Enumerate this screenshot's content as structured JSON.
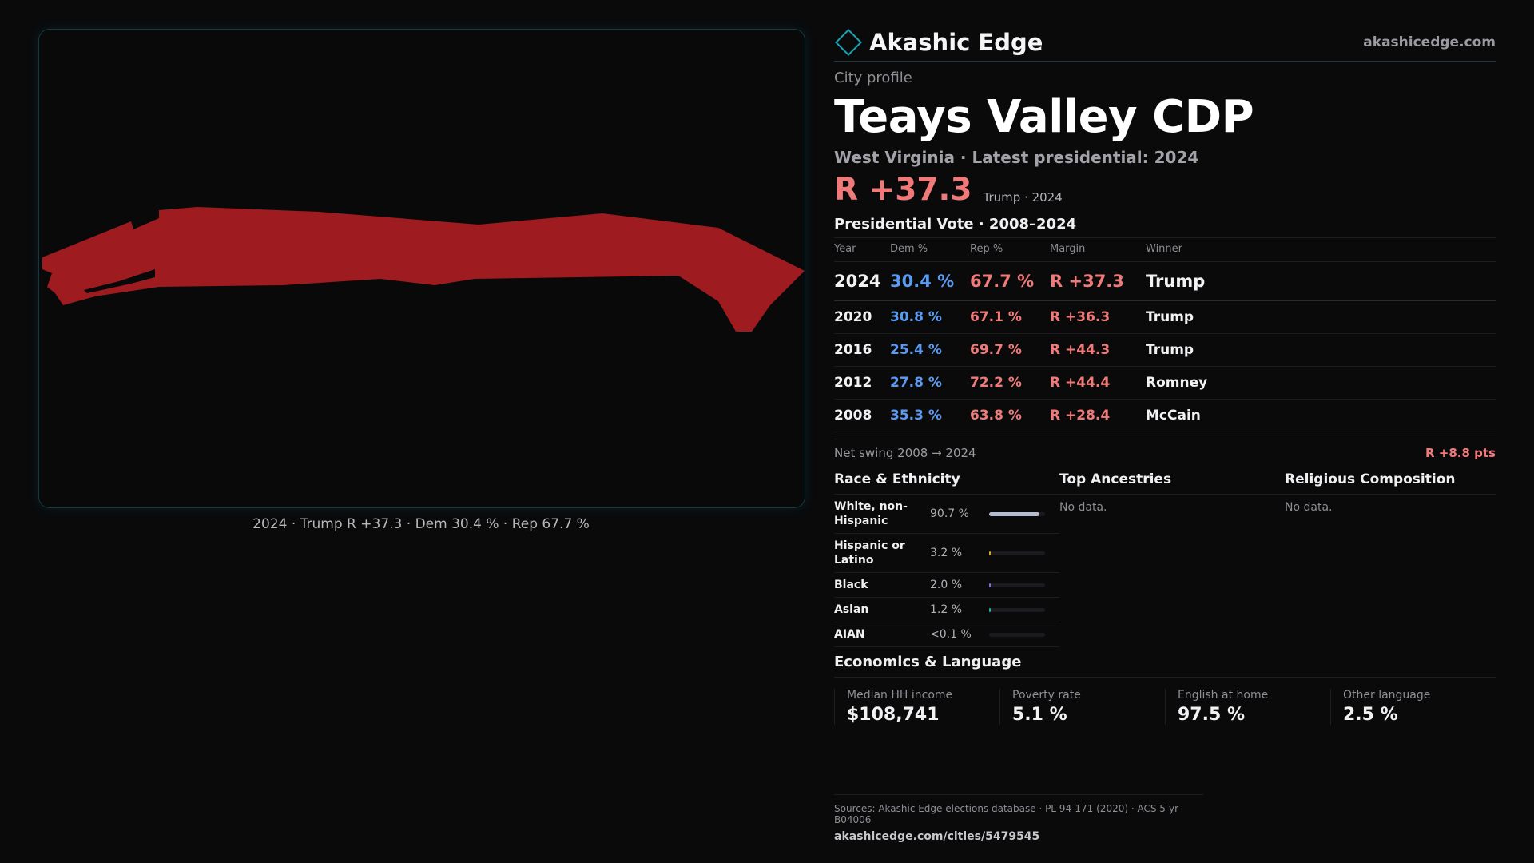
{
  "map": {
    "caption": "2024 · Trump R +37.3 · Dem 30.4 % · Rep 67.7 %",
    "fill_color": "#9e1b1f"
  },
  "header": {
    "brand": "Akashic Edge",
    "site": "akashicedge.com",
    "kicker": "City profile",
    "city": "Teays Valley CDP",
    "subtitle": "West Virginia · Latest presidential: 2024",
    "margin": "R +37.3",
    "margin_note": "Trump · 2024"
  },
  "votes": {
    "title": "Presidential Vote · 2008–2024",
    "columns": [
      "Year",
      "Dem %",
      "Rep %",
      "Margin",
      "Winner"
    ],
    "rows": [
      {
        "year": "2024",
        "dem": "30.4 %",
        "rep": "67.7 %",
        "margin": "R +37.3",
        "winner": "Trump"
      },
      {
        "year": "2020",
        "dem": "30.8 %",
        "rep": "67.1 %",
        "margin": "R +36.3",
        "winner": "Trump"
      },
      {
        "year": "2016",
        "dem": "25.4 %",
        "rep": "69.7 %",
        "margin": "R +44.3",
        "winner": "Trump"
      },
      {
        "year": "2012",
        "dem": "27.8 %",
        "rep": "72.2 %",
        "margin": "R +44.4",
        "winner": "Romney"
      },
      {
        "year": "2008",
        "dem": "35.3 %",
        "rep": "63.8 %",
        "margin": "R +28.4",
        "winner": "McCain"
      }
    ],
    "swing_label": "Net swing 2008 → 2024",
    "swing_value": "R +8.8 pts"
  },
  "race": {
    "title": "Race & Ethnicity",
    "rows": [
      {
        "name": "White, non-Hispanic",
        "pct": "90.7 %",
        "share": 0.907,
        "color": "#b8bcd0"
      },
      {
        "name": "Hispanic or Latino",
        "pct": "3.2 %",
        "share": 0.032,
        "color": "#e0a020"
      },
      {
        "name": "Black",
        "pct": "2.0 %",
        "share": 0.02,
        "color": "#8a6ae0"
      },
      {
        "name": "Asian",
        "pct": "1.2 %",
        "share": 0.012,
        "color": "#20b0a0"
      },
      {
        "name": "AIAN",
        "pct": "<0.1 %",
        "share": 0.0,
        "color": "#c07040"
      }
    ]
  },
  "ancestries": {
    "title": "Top Ancestries",
    "empty": "No data."
  },
  "religion": {
    "title": "Religious Composition",
    "empty": "No data."
  },
  "economics": {
    "title": "Economics & Language",
    "cells": [
      {
        "label": "Median HH income",
        "value": "$108,741"
      },
      {
        "label": "Poverty rate",
        "value": "5.1 %"
      },
      {
        "label": "English at home",
        "value": "97.5 %"
      },
      {
        "label": "Other language",
        "value": "2.5 %"
      }
    ]
  },
  "sources": {
    "line1": "Sources: Akashic Edge elections database · PL 94-171 (2020) · ACS 5-yr B04006",
    "line2": "akashicedge.com/cities/5479545"
  }
}
